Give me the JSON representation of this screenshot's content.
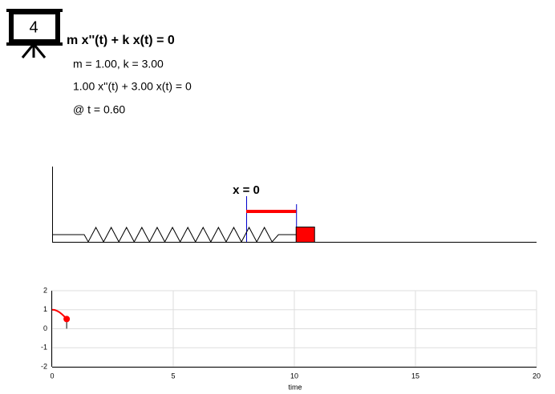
{
  "header": {
    "icon_label": "4",
    "equation": "m x''(t) + k x(t) = 0",
    "parameters": "m = 1.00, k = 3.00",
    "equation_numeric": "1.00 x''(t) + 3.00 x(t) = 0",
    "time": "@ t = 0.60"
  },
  "spring": {
    "equilibrium_label": "x = 0",
    "displacement": 0.51
  },
  "plot": {
    "xlabel": "time",
    "xlim": [
      0,
      20
    ],
    "ylim": [
      -2,
      2
    ],
    "xticks": [
      0,
      5,
      10,
      15,
      20
    ],
    "yticks": [
      -2,
      -1,
      0,
      1,
      2
    ],
    "grid": true,
    "color": "#ff0000",
    "trajectory": {
      "t": [
        0,
        0.1,
        0.2,
        0.3,
        0.4,
        0.5,
        0.6
      ],
      "y": [
        1,
        0.99,
        0.94,
        0.87,
        0.77,
        0.65,
        0.51
      ]
    }
  }
}
